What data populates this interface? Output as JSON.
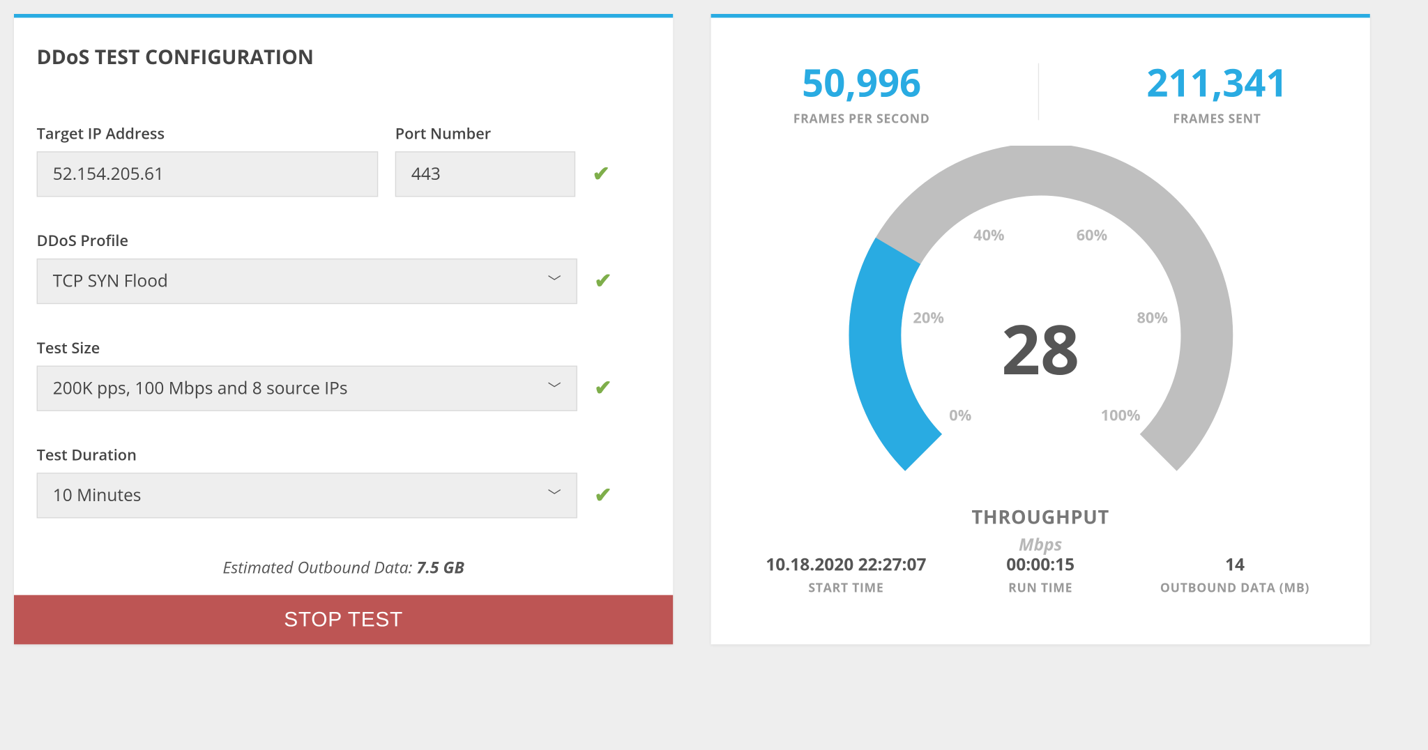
{
  "colors": {
    "accent": "#29abe2",
    "danger": "#bd5554",
    "ok": "#7eae4a",
    "input_bg": "#eeeeee",
    "text": "#444444",
    "muted": "#999999",
    "gauge_track": "#bfbfbf",
    "gauge_fill": "#29abe2"
  },
  "config": {
    "title": "DDoS TEST CONFIGURATION",
    "fields": {
      "ip": {
        "label": "Target IP Address",
        "value": "52.154.205.61"
      },
      "port": {
        "label": "Port Number",
        "value": "443"
      },
      "profile": {
        "label": "DDoS Profile",
        "value": "TCP SYN Flood"
      },
      "size": {
        "label": "Test Size",
        "value": "200K pps, 100 Mbps and 8 source IPs"
      },
      "duration": {
        "label": "Test Duration",
        "value": "10 Minutes"
      }
    },
    "estimate": {
      "prefix": "Estimated Outbound Data: ",
      "value": "7.5 GB"
    },
    "stop_button": "STOP TEST"
  },
  "stats": {
    "top": {
      "fps": {
        "value": "50,996",
        "label": "FRAMES PER SECOND"
      },
      "sent": {
        "value": "211,341",
        "label": "FRAMES SENT"
      }
    },
    "gauge": {
      "type": "gauge",
      "value": 28,
      "value_text": "28",
      "title": "THROUGHPUT",
      "unit": "Mbps",
      "min": 0,
      "max": 100,
      "ticks": [
        "0%",
        "20%",
        "40%",
        "60%",
        "80%",
        "100%"
      ],
      "start_angle_deg": 225,
      "end_angle_deg": -45,
      "track_color": "#bfbfbf",
      "fill_color": "#29abe2",
      "stroke_width": 55,
      "radius": 175,
      "label_fontsize": 16,
      "value_fontsize": 72
    },
    "bottom": {
      "start": {
        "value": "10.18.2020 22:27:07",
        "label": "START TIME"
      },
      "runtime": {
        "value": "00:00:15",
        "label": "RUN TIME"
      },
      "outbound": {
        "value": "14",
        "label": "OUTBOUND DATA (MB)"
      }
    }
  }
}
